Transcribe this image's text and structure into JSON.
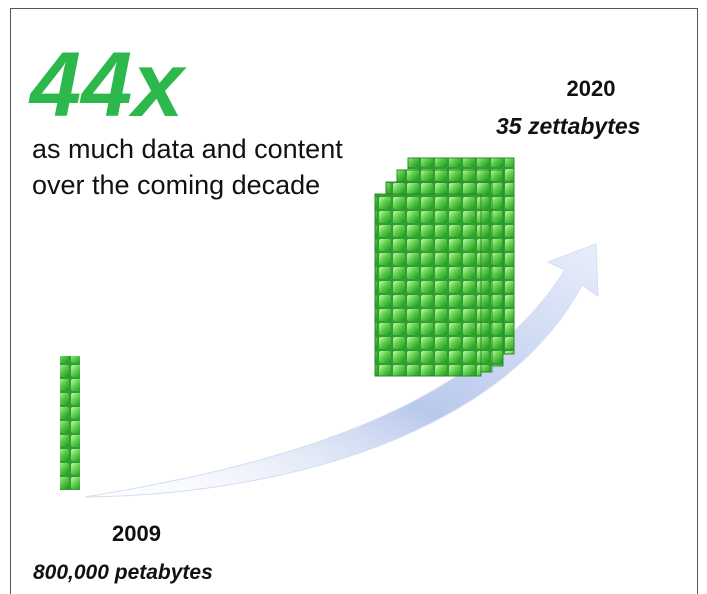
{
  "headline": "44x",
  "subtitle": [
    "as much data and content",
    "over the coming decade"
  ],
  "end": {
    "year": "2020",
    "amount": "35 zettabytes"
  },
  "start": {
    "year": "2009",
    "amount": "800,000 petabytes"
  }
}
